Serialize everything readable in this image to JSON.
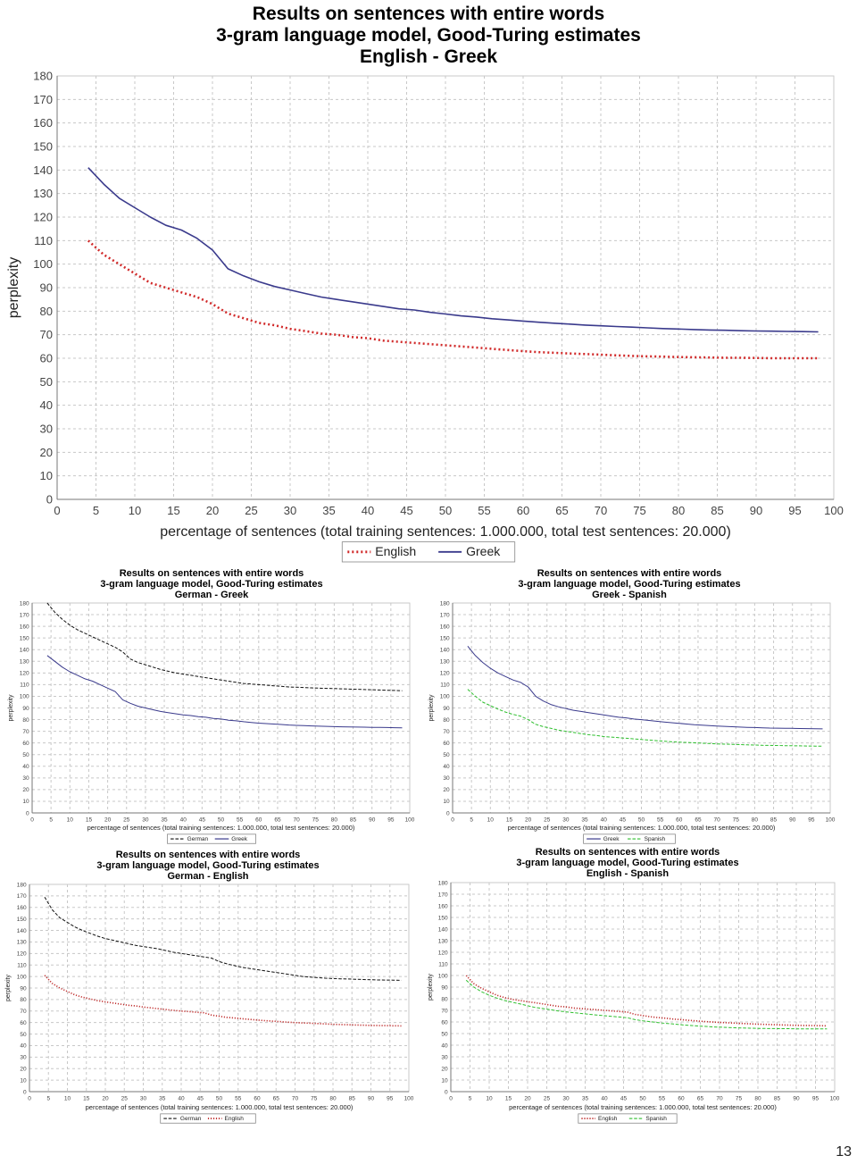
{
  "page": {
    "number": "13"
  },
  "chart_data": [
    {
      "type": "line",
      "title": [
        "Results on sentences with entire words",
        "3-gram language model, Good-Turing estimates",
        "English - Greek"
      ],
      "xlabel": "percentage of sentences (total training sentences: 1.000.000, total test sentences: 20.000)",
      "ylabel": "perplexity",
      "xlim": [
        0,
        100
      ],
      "ylim": [
        0,
        180
      ],
      "xticks": [
        0,
        5,
        10,
        15,
        20,
        25,
        30,
        35,
        40,
        45,
        50,
        55,
        60,
        65,
        70,
        75,
        80,
        85,
        90,
        95,
        100
      ],
      "yticks": [
        0,
        10,
        20,
        30,
        40,
        50,
        60,
        70,
        80,
        90,
        100,
        110,
        120,
        130,
        140,
        150,
        160,
        170,
        180
      ],
      "grid": true,
      "legend_position": "bottom-center",
      "x": [
        4,
        6,
        8,
        10,
        12,
        14,
        16,
        18,
        20,
        22,
        24,
        26,
        28,
        30,
        32,
        34,
        36,
        38,
        40,
        42,
        44,
        46,
        48,
        50,
        52,
        54,
        56,
        58,
        60,
        62,
        64,
        66,
        68,
        70,
        72,
        74,
        76,
        78,
        80,
        82,
        84,
        86,
        88,
        90,
        92,
        94,
        96,
        98
      ],
      "series": [
        {
          "name": "English",
          "color": "#d12a2a",
          "style": "dotted",
          "values": [
            110,
            104,
            100,
            96,
            92,
            90,
            88,
            86,
            83,
            79,
            77,
            75,
            74,
            72.5,
            71.5,
            70.5,
            70,
            69,
            68.5,
            67.5,
            67,
            66.5,
            66,
            65.5,
            65,
            64.5,
            64,
            63.5,
            63,
            62.6,
            62.3,
            62,
            61.8,
            61.5,
            61.2,
            61,
            60.8,
            60.7,
            60.5,
            60.4,
            60.3,
            60.2,
            60.2,
            60.1,
            60,
            60,
            60,
            60
          ]
        },
        {
          "name": "Greek",
          "color": "#3a3a8c",
          "style": "solid",
          "values": [
            141,
            134,
            128,
            124,
            120,
            116.5,
            114.5,
            111,
            106,
            98,
            95,
            92.5,
            90.5,
            89,
            87.5,
            86,
            85,
            84,
            83,
            82,
            81,
            80.5,
            79.5,
            78.8,
            78,
            77.5,
            76.8,
            76.3,
            75.8,
            75.3,
            74.9,
            74.5,
            74.1,
            73.8,
            73.5,
            73.2,
            72.9,
            72.6,
            72.4,
            72.2,
            72,
            71.9,
            71.7,
            71.6,
            71.5,
            71.4,
            71.3,
            71.2
          ]
        }
      ]
    },
    {
      "type": "line",
      "title": [
        "Results on sentences with entire words",
        "3-gram language model, Good-Turing estimates",
        "German - Greek"
      ],
      "xlabel": "percentage of sentences (total training sentences: 1.000.000, total test sentences: 20.000)",
      "ylabel": "perplexity",
      "xlim": [
        0,
        100
      ],
      "ylim": [
        0,
        180
      ],
      "xticks": [
        0,
        5,
        10,
        15,
        20,
        25,
        30,
        35,
        40,
        45,
        50,
        55,
        60,
        65,
        70,
        75,
        80,
        85,
        90,
        95,
        100
      ],
      "yticks": [
        0,
        10,
        20,
        30,
        40,
        50,
        60,
        70,
        80,
        90,
        100,
        110,
        120,
        130,
        140,
        150,
        160,
        170,
        180
      ],
      "grid": true,
      "legend_position": "bottom-center",
      "x": [
        4,
        6,
        8,
        10,
        12,
        14,
        16,
        18,
        20,
        22,
        24,
        26,
        28,
        30,
        32,
        34,
        36,
        38,
        40,
        42,
        44,
        46,
        48,
        50,
        52,
        54,
        56,
        58,
        60,
        62,
        64,
        66,
        68,
        70,
        72,
        74,
        76,
        78,
        80,
        82,
        84,
        86,
        88,
        90,
        92,
        94,
        96,
        98
      ],
      "series": [
        {
          "name": "German",
          "color": "#111111",
          "style": "dashed",
          "values": [
            180,
            172,
            166,
            161,
            157,
            154,
            151,
            148,
            145,
            142,
            138,
            132,
            129,
            127,
            125,
            123,
            121.5,
            120,
            119,
            118,
            117,
            116,
            115,
            114,
            113,
            112,
            111,
            110.5,
            110,
            109.5,
            109,
            108.5,
            108,
            107.8,
            107.5,
            107.2,
            107,
            106.8,
            106.6,
            106.4,
            106.2,
            106,
            105.8,
            105.6,
            105.4,
            105.2,
            105,
            104.8
          ]
        },
        {
          "name": "Greek",
          "color": "#3a3a8c",
          "style": "solid",
          "values": [
            135,
            130,
            125,
            121,
            118,
            115,
            113,
            110,
            107,
            104,
            97,
            94,
            91.5,
            90,
            88.5,
            87,
            86,
            85,
            84,
            83.5,
            82.5,
            82,
            81,
            80.5,
            79.5,
            79,
            78.2,
            77.6,
            77,
            76.6,
            76.2,
            75.8,
            75.4,
            75.1,
            74.8,
            74.6,
            74.4,
            74.2,
            74,
            73.8,
            73.7,
            73.6,
            73.5,
            73.4,
            73.3,
            73.2,
            73.1,
            73
          ]
        }
      ]
    },
    {
      "type": "line",
      "title": [
        "Results on sentences with entire words",
        "3-gram language model, Good-Turing estimates",
        "Greek - Spanish"
      ],
      "xlabel": "percentage of sentences (total training sentences: 1.000.000, total test sentences: 20.000)",
      "ylabel": "perplexity",
      "xlim": [
        0,
        100
      ],
      "ylim": [
        0,
        180
      ],
      "xticks": [
        0,
        5,
        10,
        15,
        20,
        25,
        30,
        35,
        40,
        45,
        50,
        55,
        60,
        65,
        70,
        75,
        80,
        85,
        90,
        95,
        100
      ],
      "yticks": [
        0,
        10,
        20,
        30,
        40,
        50,
        60,
        70,
        80,
        90,
        100,
        110,
        120,
        130,
        140,
        150,
        160,
        170,
        180
      ],
      "grid": true,
      "legend_position": "bottom-center",
      "x": [
        4,
        6,
        8,
        10,
        12,
        14,
        16,
        18,
        20,
        22,
        24,
        26,
        28,
        30,
        32,
        34,
        36,
        38,
        40,
        42,
        44,
        46,
        48,
        50,
        52,
        54,
        56,
        58,
        60,
        62,
        64,
        66,
        68,
        70,
        72,
        74,
        76,
        78,
        80,
        82,
        84,
        86,
        88,
        90,
        92,
        94,
        96,
        98
      ],
      "series": [
        {
          "name": "Greek",
          "color": "#3a3a8c",
          "style": "solid",
          "values": [
            143,
            135,
            129,
            124,
            120,
            117,
            114,
            112,
            108,
            100,
            96,
            93,
            91,
            89.5,
            88,
            87,
            86,
            85,
            84,
            83,
            82,
            81.5,
            80.5,
            80,
            79.3,
            78.6,
            78,
            77.4,
            76.8,
            76.2,
            75.7,
            75.3,
            74.9,
            74.5,
            74.2,
            73.9,
            73.6,
            73.4,
            73.2,
            73,
            72.8,
            72.7,
            72.6,
            72.5,
            72.4,
            72.3,
            72.2,
            72.1
          ]
        },
        {
          "name": "Spanish",
          "color": "#2fbf2f",
          "style": "dashed",
          "values": [
            106,
            100,
            95,
            92,
            89,
            86.5,
            84.5,
            83,
            80,
            76,
            74,
            72.5,
            71,
            70,
            69,
            68,
            67,
            66.5,
            65.5,
            65,
            64.5,
            64,
            63.5,
            63,
            62.5,
            62,
            61.5,
            61,
            60.7,
            60.4,
            60.1,
            59.8,
            59.5,
            59.2,
            59,
            58.8,
            58.6,
            58.4,
            58.2,
            58,
            57.9,
            57.8,
            57.7,
            57.6,
            57.5,
            57.4,
            57.3,
            57.2
          ]
        }
      ]
    },
    {
      "type": "line",
      "title": [
        "Results on sentences with entire words",
        "3-gram language model, Good-Turing estimates",
        "German - English"
      ],
      "xlabel": "percentage of sentences (total training sentences: 1.000.000, total test sentences: 20.000)",
      "ylabel": "perplexity",
      "xlim": [
        0,
        100
      ],
      "ylim": [
        0,
        180
      ],
      "xticks": [
        0,
        5,
        10,
        15,
        20,
        25,
        30,
        35,
        40,
        45,
        50,
        55,
        60,
        65,
        70,
        75,
        80,
        85,
        90,
        95,
        100
      ],
      "yticks": [
        0,
        10,
        20,
        30,
        40,
        50,
        60,
        70,
        80,
        90,
        100,
        110,
        120,
        130,
        140,
        150,
        160,
        170,
        180
      ],
      "grid": true,
      "legend_position": "bottom-center",
      "x": [
        4,
        6,
        8,
        10,
        12,
        14,
        16,
        18,
        20,
        22,
        24,
        26,
        28,
        30,
        32,
        34,
        36,
        38,
        40,
        42,
        44,
        46,
        48,
        50,
        52,
        54,
        56,
        58,
        60,
        62,
        64,
        66,
        68,
        70,
        72,
        74,
        76,
        78,
        80,
        82,
        84,
        86,
        88,
        90,
        92,
        94,
        96,
        98
      ],
      "series": [
        {
          "name": "German",
          "color": "#111111",
          "style": "dashed",
          "values": [
            169,
            158,
            151,
            147,
            143,
            140,
            137.5,
            135,
            133,
            131.5,
            130,
            128.5,
            127,
            126,
            125,
            124,
            122.5,
            121,
            120,
            119,
            118,
            117,
            116,
            113,
            111,
            109.5,
            108,
            107,
            106,
            105,
            104,
            103,
            102,
            101,
            100,
            99.5,
            99,
            98.5,
            98.2,
            98,
            97.8,
            97.6,
            97.4,
            97.2,
            97,
            96.9,
            96.8,
            96.7
          ]
        },
        {
          "name": "English",
          "color": "#c03030",
          "style": "dotted",
          "values": [
            101,
            94,
            90,
            87,
            84,
            82,
            80.5,
            79,
            78,
            77,
            76,
            75,
            74.5,
            73.5,
            72.8,
            72,
            71.3,
            70.6,
            70,
            69.5,
            69,
            68.5,
            66.5,
            65.5,
            64.5,
            64,
            63.3,
            62.8,
            62.2,
            61.7,
            61.2,
            60.8,
            60.4,
            60,
            59.7,
            59.4,
            59.1,
            58.8,
            58.5,
            58.3,
            58.1,
            57.9,
            57.7,
            57.5,
            57.4,
            57.3,
            57.2,
            57.1
          ]
        }
      ]
    },
    {
      "type": "line",
      "title": [
        "Results on sentences with entire words",
        "3-gram language model, Good-Turing estimates",
        "English - Spanish"
      ],
      "xlabel": "percentage of sentences (total training sentences: 1.000.000, total test sentences: 20.000)",
      "ylabel": "perplexity",
      "xlim": [
        0,
        100
      ],
      "ylim": [
        0,
        180
      ],
      "xticks": [
        0,
        5,
        10,
        15,
        20,
        25,
        30,
        35,
        40,
        45,
        50,
        55,
        60,
        65,
        70,
        75,
        80,
        85,
        90,
        95,
        100
      ],
      "yticks": [
        0,
        10,
        20,
        30,
        40,
        50,
        60,
        70,
        80,
        90,
        100,
        110,
        120,
        130,
        140,
        150,
        160,
        170,
        180
      ],
      "grid": true,
      "legend_position": "bottom-center",
      "x": [
        4,
        6,
        8,
        10,
        12,
        14,
        16,
        18,
        20,
        22,
        24,
        26,
        28,
        30,
        32,
        34,
        36,
        38,
        40,
        42,
        44,
        46,
        48,
        50,
        52,
        54,
        56,
        58,
        60,
        62,
        64,
        66,
        68,
        70,
        72,
        74,
        76,
        78,
        80,
        82,
        84,
        86,
        88,
        90,
        92,
        94,
        96,
        98
      ],
      "series": [
        {
          "name": "English",
          "color": "#c03030",
          "style": "dotted",
          "values": [
            100,
            93,
            89,
            86,
            83,
            81,
            79.5,
            78.5,
            77.5,
            76.5,
            75.5,
            74.5,
            73.5,
            73,
            72,
            71.5,
            71,
            70.5,
            70,
            69.5,
            69,
            68.5,
            66.5,
            65.5,
            64.5,
            63.8,
            63.2,
            62.5,
            62,
            61.4,
            60.9,
            60.4,
            60,
            59.6,
            59.3,
            59,
            58.7,
            58.4,
            58.1,
            57.9,
            57.7,
            57.5,
            57.3,
            57.1,
            57,
            56.9,
            56.8,
            56.7
          ]
        },
        {
          "name": "Spanish",
          "color": "#2fbf2f",
          "style": "dashed",
          "values": [
            96,
            90,
            86,
            83,
            80.5,
            78.5,
            77,
            75.5,
            74,
            72.5,
            71.5,
            70.5,
            69.5,
            68.7,
            68,
            67.3,
            66.6,
            66,
            65.4,
            64.8,
            64.2,
            63.6,
            62,
            61,
            60.2,
            59.5,
            58.8,
            58.2,
            57.6,
            57.1,
            56.6,
            56.2,
            55.8,
            55.5,
            55.2,
            55,
            54.8,
            54.6,
            54.5,
            54.4,
            54.3,
            54.2,
            54.2,
            54.1,
            54.1,
            54,
            54,
            54
          ]
        }
      ]
    }
  ]
}
